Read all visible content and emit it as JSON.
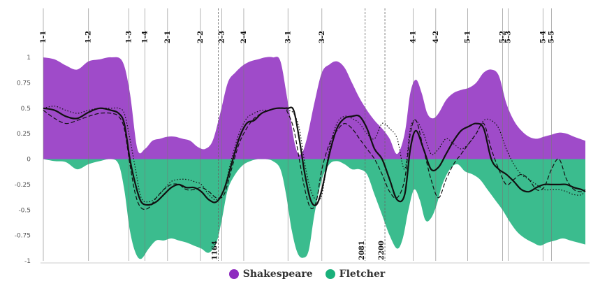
{
  "chart_data": {
    "type": "area",
    "ylim": [
      -1,
      1
    ],
    "xlim": [
      0,
      2880
    ],
    "y_ticks": [
      "1",
      "0.75",
      "0.5",
      "0.25",
      "0",
      "-0.25",
      "-0.5",
      "-0.75",
      "-1"
    ],
    "y_values": [
      1,
      0.75,
      0.5,
      0.25,
      0,
      -0.25,
      -0.5,
      -0.75,
      -1
    ],
    "grid": false,
    "legend_placement": "bottom-center",
    "colors": {
      "shakespeare": "#8e2bbf",
      "fletcher": "#19b07a"
    },
    "scenes": [
      {
        "label": "1-1",
        "x": 0
      },
      {
        "label": "1-2",
        "x": 240
      },
      {
        "label": "1-3",
        "x": 455
      },
      {
        "label": "1-4",
        "x": 540
      },
      {
        "label": "2-1",
        "x": 660
      },
      {
        "label": "2-2",
        "x": 835
      },
      {
        "label": "2-3",
        "x": 948
      },
      {
        "label": "2-4",
        "x": 1065
      },
      {
        "label": "3-1",
        "x": 1300
      },
      {
        "label": "3-2",
        "x": 1480
      },
      {
        "label": "4-1",
        "x": 1965
      },
      {
        "label": "4-2",
        "x": 2085
      },
      {
        "label": "5-1",
        "x": 2255
      },
      {
        "label": "5-2",
        "x": 2440
      },
      {
        "label": "5-3",
        "x": 2470
      },
      {
        "label": "5-4",
        "x": 2655
      },
      {
        "label": "5-5",
        "x": 2700
      }
    ],
    "markers": [
      {
        "label": "1164",
        "x": 930
      },
      {
        "label": "2081",
        "x": 1710
      },
      {
        "label": "2200",
        "x": 1815
      }
    ],
    "series": [
      {
        "name": "Shakespeare",
        "x": [
          0,
          60,
          120,
          180,
          240,
          300,
          360,
          420,
          460,
          500,
          540,
          580,
          620,
          660,
          700,
          740,
          780,
          820,
          860,
          900,
          940,
          980,
          1020,
          1060,
          1100,
          1140,
          1180,
          1220,
          1260,
          1300,
          1340,
          1370,
          1400,
          1440,
          1480,
          1520,
          1560,
          1600,
          1640,
          1680,
          1720,
          1760,
          1800,
          1840,
          1880,
          1920,
          1950,
          1980,
          2010,
          2040,
          2070,
          2100,
          2140,
          2180,
          2220,
          2260,
          2300,
          2340,
          2380,
          2420,
          2460,
          2500,
          2540,
          2580,
          2620,
          2660,
          2700,
          2740,
          2780,
          2820,
          2880
        ],
        "values": [
          1.0,
          0.98,
          0.92,
          0.88,
          0.96,
          0.98,
          1.0,
          0.96,
          0.65,
          0.1,
          0.1,
          0.18,
          0.2,
          0.22,
          0.22,
          0.2,
          0.18,
          0.12,
          0.1,
          0.18,
          0.45,
          0.75,
          0.85,
          0.92,
          0.96,
          0.98,
          1.0,
          1.0,
          0.96,
          0.55,
          0.12,
          0.05,
          0.2,
          0.55,
          0.85,
          0.93,
          0.96,
          0.9,
          0.75,
          0.6,
          0.48,
          0.38,
          0.3,
          0.2,
          0.05,
          0.25,
          0.65,
          0.78,
          0.65,
          0.45,
          0.4,
          0.45,
          0.58,
          0.65,
          0.68,
          0.7,
          0.75,
          0.85,
          0.88,
          0.82,
          0.55,
          0.38,
          0.28,
          0.22,
          0.2,
          0.22,
          0.24,
          0.26,
          0.25,
          0.22,
          0.18
        ]
      },
      {
        "name": "Fletcher",
        "x": [
          0,
          60,
          120,
          180,
          240,
          300,
          360,
          400,
          430,
          460,
          490,
          520,
          560,
          600,
          640,
          680,
          720,
          760,
          800,
          840,
          880,
          920,
          950,
          980,
          1020,
          1060,
          1100,
          1140,
          1180,
          1220,
          1260,
          1290,
          1320,
          1350,
          1380,
          1410,
          1440,
          1480,
          1520,
          1560,
          1600,
          1640,
          1680,
          1720,
          1760,
          1800,
          1840,
          1880,
          1910,
          1940,
          1970,
          2000,
          2030,
          2060,
          2090,
          2120,
          2160,
          2200,
          2240,
          2280,
          2320,
          2360,
          2400,
          2440,
          2480,
          2520,
          2560,
          2600,
          2640,
          2680,
          2720,
          2760,
          2800,
          2840,
          2880
        ],
        "values": [
          0.0,
          -0.02,
          -0.03,
          -0.1,
          -0.05,
          -0.02,
          0.0,
          -0.05,
          -0.3,
          -0.7,
          -0.92,
          -0.98,
          -0.88,
          -0.8,
          -0.8,
          -0.78,
          -0.8,
          -0.82,
          -0.85,
          -0.88,
          -0.92,
          -0.82,
          -0.58,
          -0.3,
          -0.15,
          -0.06,
          -0.02,
          0.0,
          0.0,
          -0.02,
          -0.1,
          -0.35,
          -0.7,
          -0.92,
          -0.97,
          -0.9,
          -0.55,
          -0.2,
          -0.05,
          -0.02,
          -0.05,
          -0.1,
          -0.1,
          -0.15,
          -0.35,
          -0.55,
          -0.75,
          -0.88,
          -0.78,
          -0.5,
          -0.3,
          -0.4,
          -0.6,
          -0.58,
          -0.45,
          -0.25,
          -0.1,
          -0.05,
          -0.12,
          -0.15,
          -0.2,
          -0.3,
          -0.4,
          -0.5,
          -0.62,
          -0.72,
          -0.78,
          -0.82,
          -0.85,
          -0.82,
          -0.8,
          -0.78,
          -0.8,
          -0.82,
          -0.84
        ]
      }
    ],
    "lines": [
      {
        "style": "solid",
        "x": [
          0,
          60,
          120,
          180,
          240,
          300,
          360,
          400,
          430,
          460,
          490,
          520,
          560,
          600,
          640,
          680,
          720,
          760,
          800,
          840,
          880,
          920,
          960,
          1000,
          1040,
          1080,
          1120,
          1160,
          1200,
          1240,
          1280,
          1300,
          1330,
          1360,
          1390,
          1420,
          1450,
          1480,
          1520,
          1560,
          1600,
          1640,
          1680,
          1720,
          1760,
          1800,
          1840,
          1880,
          1920,
          1950,
          1980,
          2020,
          2060,
          2100,
          2140,
          2180,
          2220,
          2260,
          2300,
          2340,
          2380,
          2420,
          2460,
          2500,
          2540,
          2580,
          2620,
          2660,
          2700,
          2740,
          2780,
          2820,
          2860,
          2880
        ],
        "values": [
          0.5,
          0.48,
          0.42,
          0.4,
          0.46,
          0.5,
          0.48,
          0.45,
          0.35,
          0.0,
          -0.25,
          -0.42,
          -0.45,
          -0.42,
          -0.35,
          -0.28,
          -0.25,
          -0.28,
          -0.28,
          -0.32,
          -0.4,
          -0.42,
          -0.3,
          -0.05,
          0.2,
          0.35,
          0.38,
          0.45,
          0.48,
          0.5,
          0.5,
          0.5,
          0.48,
          0.2,
          -0.15,
          -0.4,
          -0.45,
          -0.3,
          0.05,
          0.3,
          0.4,
          0.42,
          0.42,
          0.3,
          0.1,
          0.0,
          -0.2,
          -0.4,
          -0.35,
          0.1,
          0.28,
          0.1,
          -0.1,
          -0.08,
          0.05,
          0.18,
          0.28,
          0.32,
          0.35,
          0.3,
          0.0,
          -0.1,
          -0.15,
          -0.22,
          -0.3,
          -0.32,
          -0.28,
          -0.25,
          -0.25,
          -0.25,
          -0.25,
          -0.28,
          -0.3,
          -0.32
        ]
      },
      {
        "style": "dashed",
        "x": [
          0,
          60,
          120,
          180,
          240,
          300,
          360,
          400,
          430,
          460,
          490,
          520,
          560,
          600,
          640,
          680,
          720,
          760,
          800,
          840,
          880,
          920,
          960,
          1000,
          1040,
          1080,
          1120,
          1160,
          1200,
          1240,
          1280,
          1300,
          1330,
          1360,
          1390,
          1420,
          1450,
          1480,
          1520,
          1560,
          1600,
          1640,
          1680,
          1720,
          1760,
          1800,
          1840,
          1880,
          1920,
          1950,
          1980,
          2020,
          2060,
          2100,
          2140,
          2180,
          2220,
          2260,
          2300,
          2340,
          2380,
          2420,
          2460,
          2500,
          2540,
          2580,
          2620,
          2660,
          2700,
          2740,
          2780,
          2820,
          2860,
          2880
        ],
        "values": [
          0.48,
          0.4,
          0.35,
          0.38,
          0.42,
          0.45,
          0.45,
          0.42,
          0.3,
          -0.05,
          -0.35,
          -0.48,
          -0.48,
          -0.38,
          -0.3,
          -0.25,
          -0.25,
          -0.3,
          -0.3,
          -0.28,
          -0.32,
          -0.38,
          -0.35,
          -0.1,
          0.15,
          0.3,
          0.4,
          0.45,
          0.48,
          0.5,
          0.5,
          0.45,
          0.3,
          0.0,
          -0.3,
          -0.48,
          -0.42,
          -0.1,
          0.15,
          0.28,
          0.35,
          0.3,
          0.2,
          0.1,
          0.0,
          -0.15,
          -0.32,
          -0.38,
          -0.2,
          0.25,
          0.38,
          0.1,
          -0.2,
          -0.38,
          -0.2,
          -0.05,
          0.05,
          0.15,
          0.25,
          0.35,
          0.1,
          -0.1,
          -0.25,
          -0.2,
          -0.15,
          -0.2,
          -0.3,
          -0.28,
          -0.1,
          0.0,
          -0.2,
          -0.3,
          -0.32,
          -0.3
        ]
      },
      {
        "style": "dotted",
        "x": [
          0,
          60,
          120,
          180,
          240,
          300,
          360,
          400,
          430,
          460,
          490,
          520,
          560,
          600,
          640,
          680,
          720,
          760,
          800,
          840,
          880,
          920,
          960,
          1000,
          1040,
          1080,
          1120,
          1160,
          1200,
          1240,
          1280,
          1300,
          1330,
          1360,
          1390,
          1420,
          1450,
          1480,
          1520,
          1560,
          1600,
          1640,
          1680,
          1720,
          1760,
          1800,
          1840,
          1880,
          1920,
          1950,
          1980,
          2020,
          2060,
          2100,
          2140,
          2180,
          2220,
          2260,
          2300,
          2340,
          2380,
          2420,
          2460,
          2500,
          2540,
          2580,
          2620,
          2660,
          2700,
          2740,
          2780,
          2820,
          2860,
          2880
        ],
        "values": [
          0.5,
          0.52,
          0.48,
          0.45,
          0.48,
          0.5,
          0.5,
          0.5,
          0.45,
          0.2,
          -0.1,
          -0.38,
          -0.42,
          -0.38,
          -0.3,
          -0.22,
          -0.2,
          -0.2,
          -0.22,
          -0.25,
          -0.35,
          -0.4,
          -0.3,
          0.0,
          0.25,
          0.4,
          0.45,
          0.48,
          0.48,
          0.5,
          0.5,
          0.48,
          0.45,
          0.3,
          -0.05,
          -0.3,
          -0.4,
          -0.35,
          0.1,
          0.35,
          0.42,
          0.4,
          0.35,
          0.25,
          0.2,
          0.35,
          0.3,
          0.2,
          -0.1,
          0.3,
          0.38,
          0.25,
          0.05,
          0.1,
          0.2,
          0.15,
          0.1,
          0.15,
          0.25,
          0.38,
          0.38,
          0.3,
          0.1,
          -0.05,
          -0.15,
          -0.2,
          -0.25,
          -0.3,
          -0.3,
          -0.3,
          -0.32,
          -0.35,
          -0.35,
          -0.3
        ]
      }
    ]
  },
  "legend": [
    {
      "label": "Shakespeare",
      "color": "#8e2bbf"
    },
    {
      "label": "Fletcher",
      "color": "#19b07a"
    }
  ]
}
